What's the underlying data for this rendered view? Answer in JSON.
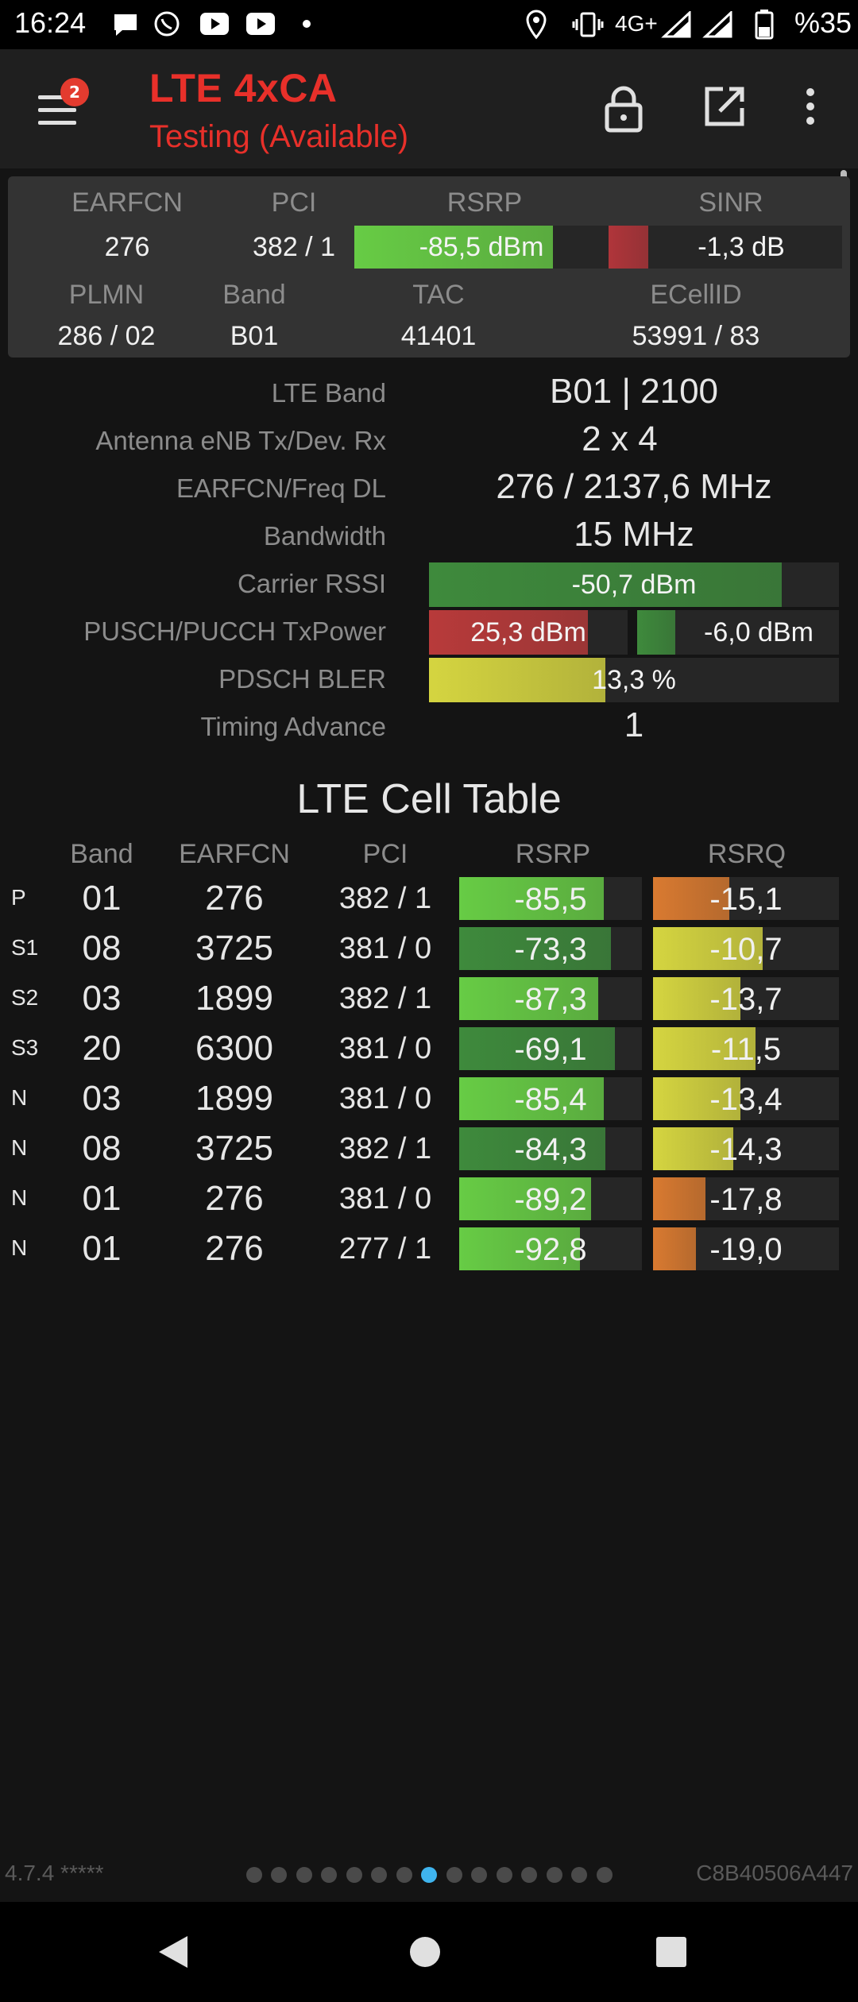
{
  "status_bar": {
    "time": "16:24",
    "network": "4G+",
    "battery_text": "%35",
    "icons": [
      "chat-bubble-icon",
      "whatsapp-icon",
      "youtube-icon",
      "youtube-icon",
      "dot-icon",
      "location-icon",
      "vibrate-icon",
      "signal-icon",
      "signal-icon",
      "battery-icon"
    ]
  },
  "app_bar": {
    "title": "LTE 4xCA",
    "subtitle": "Testing (Available)",
    "badge": "2",
    "actions": [
      "lock-icon",
      "open-external-icon",
      "more-vert-icon"
    ]
  },
  "summary": {
    "headers1": [
      "EARFCN",
      "PCI",
      "RSRP",
      "SINR"
    ],
    "earfcn": "276",
    "pci": "382 / 1",
    "rsrp": {
      "text": "-85,5 dBm",
      "fill": 0.78,
      "color": "#67cc45"
    },
    "sinr": {
      "text": "-1,3 dB",
      "fill": 0.17,
      "color": "#b0353a"
    },
    "headers2": [
      "PLMN",
      "Band",
      "TAC",
      "ECellID"
    ],
    "plmn": "286 / 02",
    "band": "B01",
    "tac": "41401",
    "ecellid": "53991 / 83"
  },
  "info": {
    "lte_band_label": "LTE Band",
    "lte_band": "B01 | 2100",
    "antenna_label": "Antenna eNB Tx/Dev. Rx",
    "antenna": "2 x 4",
    "earfcn_freq_label": "EARFCN/Freq DL",
    "earfcn_freq": "276 / 2137,6 MHz",
    "bandwidth_label": "Bandwidth",
    "bandwidth": "15 MHz",
    "rssi_label": "Carrier RSSI",
    "rssi": {
      "text": "-50,7 dBm",
      "fill": 0.86,
      "color": "#3e8a3c"
    },
    "txpower_label": "PUSCH/PUCCH TxPower",
    "pusch": {
      "text": "25,3 dBm",
      "fill": 0.8,
      "color": "#b83a3a"
    },
    "pucch": {
      "text": "-6,0 dBm",
      "fill": 0.19,
      "color": "#3e8a3c"
    },
    "bler_label": "PDSCH BLER",
    "bler": {
      "text": "13,3 %",
      "fill": 0.43,
      "color": "#d5d540"
    },
    "ta_label": "Timing Advance",
    "ta": "1"
  },
  "cell_table": {
    "title": "LTE Cell Table",
    "headers": [
      "Band",
      "EARFCN",
      "PCI",
      "RSRP",
      "RSRQ"
    ],
    "rows": [
      {
        "tag": "P",
        "band": "01",
        "earfcn": "276",
        "pci": "382 / 1",
        "rsrp": "-85,5",
        "rsrp_fill": 0.79,
        "rsrp_color": "#67cc45",
        "rsrq": "-15,1",
        "rsrq_fill": 0.41,
        "rsrq_color": "#d97a30"
      },
      {
        "tag": "S1",
        "band": "08",
        "earfcn": "3725",
        "pci": "381 / 0",
        "rsrp": "-73,3",
        "rsrp_fill": 0.83,
        "rsrp_color": "#3e8a3c",
        "rsrq": "-10,7",
        "rsrq_fill": 0.59,
        "rsrq_color": "#d5d540"
      },
      {
        "tag": "S2",
        "band": "03",
        "earfcn": "1899",
        "pci": "382 / 1",
        "rsrp": "-87,3",
        "rsrp_fill": 0.76,
        "rsrp_color": "#67cc45",
        "rsrq": "-13,7",
        "rsrq_fill": 0.47,
        "rsrq_color": "#d5d540"
      },
      {
        "tag": "S3",
        "band": "20",
        "earfcn": "6300",
        "pci": "381 / 0",
        "rsrp": "-69,1",
        "rsrp_fill": 0.85,
        "rsrp_color": "#3e8a3c",
        "rsrq": "-11,5",
        "rsrq_fill": 0.55,
        "rsrq_color": "#d5d540"
      },
      {
        "tag": "N",
        "band": "03",
        "earfcn": "1899",
        "pci": "381 / 0",
        "rsrp": "-85,4",
        "rsrp_fill": 0.79,
        "rsrp_color": "#67cc45",
        "rsrq": "-13,4",
        "rsrq_fill": 0.47,
        "rsrq_color": "#d5d540"
      },
      {
        "tag": "N",
        "band": "08",
        "earfcn": "3725",
        "pci": "382 / 1",
        "rsrp": "-84,3",
        "rsrp_fill": 0.8,
        "rsrp_color": "#3e8a3c",
        "rsrq": "-14,3",
        "rsrq_fill": 0.43,
        "rsrq_color": "#d5d540"
      },
      {
        "tag": "N",
        "band": "01",
        "earfcn": "276",
        "pci": "381 / 0",
        "rsrp": "-89,2",
        "rsrp_fill": 0.72,
        "rsrp_color": "#67cc45",
        "rsrq": "-17,8",
        "rsrq_fill": 0.28,
        "rsrq_color": "#d97a30"
      },
      {
        "tag": "N",
        "band": "01",
        "earfcn": "276",
        "pci": "277 / 1",
        "rsrp": "-92,8",
        "rsrp_fill": 0.66,
        "rsrp_color": "#67cc45",
        "rsrq": "-19,0",
        "rsrq_fill": 0.23,
        "rsrq_color": "#d97a30"
      }
    ]
  },
  "footer": {
    "version": "4.7.4 *****",
    "device_id": "C8B40506A447",
    "page_count": 15,
    "active_page": 7
  },
  "nav": [
    "back-icon",
    "home-icon",
    "recents-icon"
  ]
}
